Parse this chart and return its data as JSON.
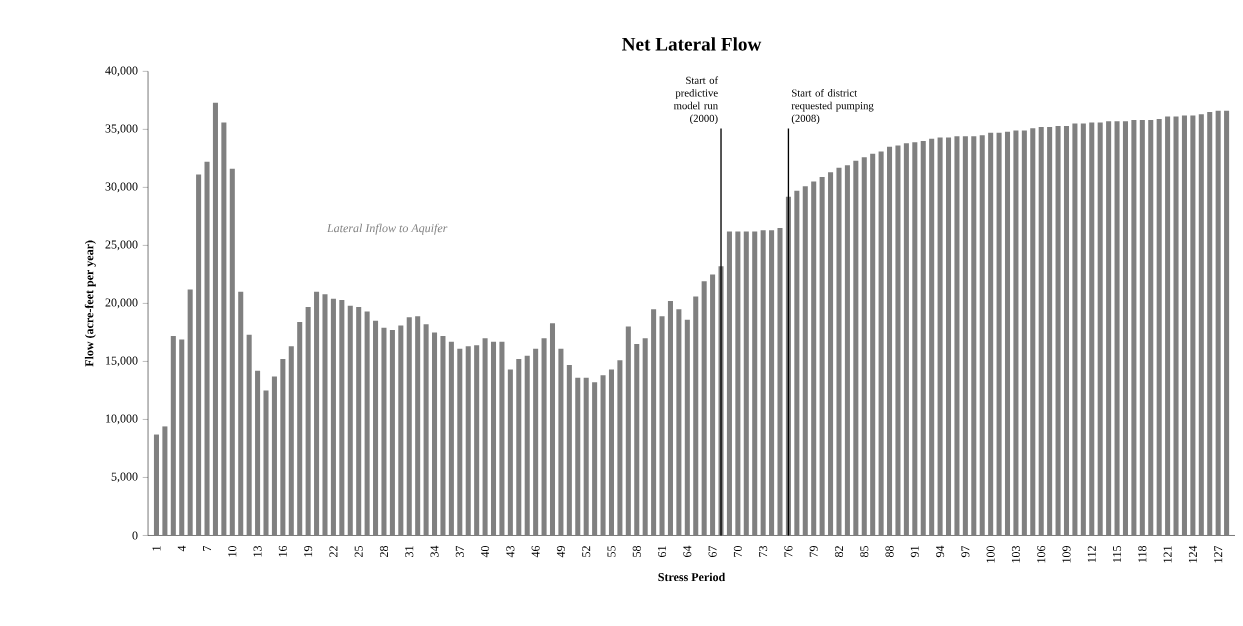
{
  "chart_data": {
    "type": "bar",
    "title": "Net Lateral Flow",
    "xlabel": "Stress Period",
    "ylabel": "Flow (acre-feet per year)",
    "x": [
      1,
      2,
      3,
      4,
      5,
      6,
      7,
      8,
      9,
      10,
      11,
      12,
      13,
      14,
      15,
      16,
      17,
      18,
      19,
      20,
      21,
      22,
      23,
      24,
      25,
      26,
      27,
      28,
      29,
      30,
      31,
      32,
      33,
      34,
      35,
      36,
      37,
      38,
      39,
      40,
      41,
      42,
      43,
      44,
      45,
      46,
      47,
      48,
      49,
      50,
      51,
      52,
      53,
      54,
      55,
      56,
      57,
      58,
      59,
      60,
      61,
      62,
      63,
      64,
      65,
      66,
      67,
      68,
      69,
      70,
      71,
      72,
      73,
      74,
      75,
      76,
      77,
      78,
      79,
      80,
      81,
      82,
      83,
      84,
      85,
      86,
      87,
      88,
      89,
      90,
      91,
      92,
      93,
      94,
      95,
      96,
      97,
      98,
      99,
      100,
      101,
      102,
      103,
      104,
      105,
      106,
      107,
      108,
      109,
      110,
      111,
      112,
      113,
      114,
      115,
      116,
      117,
      118,
      119,
      120,
      121,
      122,
      123,
      124,
      125,
      126,
      127,
      128
    ],
    "values": [
      8700,
      9400,
      17200,
      16900,
      21200,
      31100,
      32200,
      37300,
      35600,
      31600,
      21000,
      17300,
      14200,
      12500,
      13700,
      15200,
      16300,
      18400,
      19700,
      21000,
      20800,
      20400,
      20300,
      19800,
      19700,
      19300,
      18500,
      17900,
      17700,
      18100,
      18800,
      18900,
      18200,
      17500,
      17200,
      16700,
      16100,
      16300,
      16400,
      17000,
      16700,
      16700,
      14300,
      15200,
      15500,
      16100,
      17000,
      18300,
      16100,
      14700,
      13600,
      13600,
      13200,
      13800,
      14300,
      15100,
      18000,
      16500,
      17000,
      19500,
      18900,
      20200,
      19500,
      18600,
      20600,
      21900,
      22500,
      23200,
      26200,
      26200,
      26200,
      26200,
      26300,
      26300,
      26500,
      29200,
      29700,
      30100,
      30500,
      30900,
      31300,
      31700,
      31900,
      32300,
      32600,
      32900,
      33100,
      33500,
      33600,
      33800,
      33900,
      34000,
      34200,
      34300,
      34300,
      34400,
      34400,
      34400,
      34500,
      34700,
      34700,
      34800,
      34900,
      34900,
      35100,
      35200,
      35200,
      35300,
      35300,
      35500,
      35500,
      35600,
      35600,
      35700,
      35700,
      35700,
      35800,
      35800,
      35800,
      35900,
      36100,
      36100,
      36200,
      36200,
      36300,
      36500,
      36600,
      36600
    ],
    "color": "#808080",
    "xlim": [
      0,
      129
    ],
    "xticks": [
      1,
      4,
      7,
      10,
      13,
      16,
      19,
      22,
      25,
      28,
      31,
      34,
      37,
      40,
      43,
      46,
      49,
      52,
      55,
      58,
      61,
      64,
      67,
      70,
      73,
      76,
      79,
      82,
      85,
      88,
      91,
      94,
      97,
      100,
      103,
      106,
      109,
      112,
      115,
      118,
      121,
      124,
      127
    ],
    "ylim": [
      0,
      40000
    ],
    "yticks": [
      0,
      {
        "value": 5000,
        "label": "5,000"
      },
      {
        "value": 10000,
        "label": "10,000"
      },
      {
        "value": 15000,
        "label": "15,000"
      },
      {
        "value": 20000,
        "label": "20,000"
      },
      {
        "value": 25000,
        "label": "25,000"
      },
      {
        "value": 30000,
        "label": "30,000"
      },
      {
        "value": 35000,
        "label": "35,000"
      },
      {
        "value": 40000,
        "label": "40,000"
      }
    ],
    "ref_lines": [
      {
        "axis": "x",
        "value": 68,
        "label": "Start of predictive model run (2000)"
      },
      {
        "axis": "x",
        "value": 76,
        "label": "Start of district requested pumping (2008)"
      }
    ],
    "annotations": [
      "Lateral Inflow to Aquifer"
    ]
  }
}
